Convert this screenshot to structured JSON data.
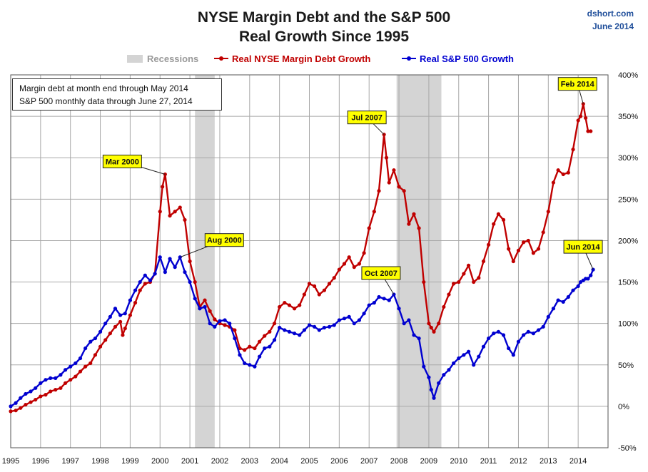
{
  "header": {
    "title_line1": "NYSE Margin Debt and the S&P 500",
    "title_line2": "Real Growth Since 1995",
    "source_line1": "dshort.com",
    "source_line2": "June 2014"
  },
  "note": {
    "line1": "Margin debt at month end through May 2014",
    "line2": "S&P 500 monthly data through June 27, 2014"
  },
  "chart_data": {
    "type": "line",
    "title": "NYSE Margin Debt and the S&P 500 Real Growth Since 1995",
    "xlim": [
      1995.0,
      2015.0
    ],
    "ylim": [
      -50,
      400
    ],
    "y_ticks": [
      -50,
      0,
      50,
      100,
      150,
      200,
      250,
      300,
      350,
      400
    ],
    "y_tick_labels": [
      "-50%",
      "0%",
      "50%",
      "100%",
      "150%",
      "200%",
      "250%",
      "300%",
      "350%",
      "400%"
    ],
    "x_ticks": [
      1995,
      1996,
      1997,
      1998,
      1999,
      2000,
      2001,
      2002,
      2003,
      2004,
      2005,
      2006,
      2007,
      2008,
      2009,
      2010,
      2011,
      2012,
      2013,
      2014
    ],
    "x_tick_labels": [
      "1995",
      "1996",
      "1997",
      "1998",
      "1999",
      "2000",
      "2001",
      "2002",
      "2003",
      "2004",
      "2005",
      "2006",
      "2007",
      "2008",
      "2009",
      "2010",
      "2011",
      "2012",
      "2013",
      "2014"
    ],
    "grid": true,
    "legend_position": "top-center",
    "y_axis_side": "right",
    "recessions": {
      "name": "Recessions",
      "color": "#d4d4d4",
      "periods": [
        [
          2001.17,
          2001.83
        ],
        [
          2007.92,
          2009.42
        ]
      ]
    },
    "series": [
      {
        "name": "Real NYSE Margin Debt Growth",
        "color": "#c00000",
        "points": [
          [
            1995.0,
            -6
          ],
          [
            1995.17,
            -5
          ],
          [
            1995.33,
            -2
          ],
          [
            1995.5,
            2
          ],
          [
            1995.67,
            5
          ],
          [
            1995.83,
            8
          ],
          [
            1996.0,
            12
          ],
          [
            1996.17,
            14
          ],
          [
            1996.33,
            18
          ],
          [
            1996.5,
            20
          ],
          [
            1996.67,
            22
          ],
          [
            1996.83,
            28
          ],
          [
            1997.0,
            32
          ],
          [
            1997.17,
            36
          ],
          [
            1997.33,
            42
          ],
          [
            1997.5,
            48
          ],
          [
            1997.67,
            52
          ],
          [
            1997.83,
            62
          ],
          [
            1998.0,
            72
          ],
          [
            1998.17,
            80
          ],
          [
            1998.33,
            88
          ],
          [
            1998.5,
            96
          ],
          [
            1998.67,
            102
          ],
          [
            1998.75,
            86
          ],
          [
            1998.83,
            94
          ],
          [
            1999.0,
            110
          ],
          [
            1999.17,
            125
          ],
          [
            1999.33,
            140
          ],
          [
            1999.5,
            148
          ],
          [
            1999.67,
            150
          ],
          [
            1999.83,
            160
          ],
          [
            2000.0,
            235
          ],
          [
            2000.08,
            265
          ],
          [
            2000.17,
            280
          ],
          [
            2000.33,
            230
          ],
          [
            2000.5,
            235
          ],
          [
            2000.67,
            240
          ],
          [
            2000.83,
            225
          ],
          [
            2001.0,
            175
          ],
          [
            2001.17,
            150
          ],
          [
            2001.33,
            120
          ],
          [
            2001.5,
            128
          ],
          [
            2001.67,
            115
          ],
          [
            2001.83,
            105
          ],
          [
            2002.0,
            100
          ],
          [
            2002.17,
            98
          ],
          [
            2002.33,
            96
          ],
          [
            2002.5,
            92
          ],
          [
            2002.67,
            70
          ],
          [
            2002.83,
            68
          ],
          [
            2003.0,
            72
          ],
          [
            2003.17,
            70
          ],
          [
            2003.33,
            78
          ],
          [
            2003.5,
            85
          ],
          [
            2003.67,
            90
          ],
          [
            2003.83,
            100
          ],
          [
            2004.0,
            120
          ],
          [
            2004.17,
            125
          ],
          [
            2004.33,
            122
          ],
          [
            2004.5,
            118
          ],
          [
            2004.67,
            122
          ],
          [
            2004.83,
            135
          ],
          [
            2005.0,
            148
          ],
          [
            2005.17,
            145
          ],
          [
            2005.33,
            135
          ],
          [
            2005.5,
            140
          ],
          [
            2005.67,
            148
          ],
          [
            2005.83,
            155
          ],
          [
            2006.0,
            165
          ],
          [
            2006.17,
            172
          ],
          [
            2006.33,
            180
          ],
          [
            2006.5,
            168
          ],
          [
            2006.67,
            172
          ],
          [
            2006.83,
            185
          ],
          [
            2007.0,
            215
          ],
          [
            2007.17,
            235
          ],
          [
            2007.33,
            260
          ],
          [
            2007.5,
            328
          ],
          [
            2007.58,
            300
          ],
          [
            2007.67,
            270
          ],
          [
            2007.83,
            285
          ],
          [
            2008.0,
            265
          ],
          [
            2008.17,
            260
          ],
          [
            2008.33,
            220
          ],
          [
            2008.5,
            232
          ],
          [
            2008.67,
            215
          ],
          [
            2008.83,
            150
          ],
          [
            2009.0,
            100
          ],
          [
            2009.08,
            95
          ],
          [
            2009.17,
            90
          ],
          [
            2009.33,
            100
          ],
          [
            2009.5,
            120
          ],
          [
            2009.67,
            135
          ],
          [
            2009.83,
            148
          ],
          [
            2010.0,
            150
          ],
          [
            2010.17,
            160
          ],
          [
            2010.33,
            170
          ],
          [
            2010.5,
            150
          ],
          [
            2010.67,
            155
          ],
          [
            2010.83,
            175
          ],
          [
            2011.0,
            195
          ],
          [
            2011.17,
            220
          ],
          [
            2011.33,
            232
          ],
          [
            2011.5,
            225
          ],
          [
            2011.67,
            190
          ],
          [
            2011.83,
            175
          ],
          [
            2012.0,
            188
          ],
          [
            2012.17,
            198
          ],
          [
            2012.33,
            200
          ],
          [
            2012.5,
            185
          ],
          [
            2012.67,
            190
          ],
          [
            2012.83,
            210
          ],
          [
            2013.0,
            235
          ],
          [
            2013.17,
            270
          ],
          [
            2013.33,
            285
          ],
          [
            2013.5,
            280
          ],
          [
            2013.67,
            282
          ],
          [
            2013.83,
            310
          ],
          [
            2014.0,
            345
          ],
          [
            2014.08,
            350
          ],
          [
            2014.17,
            365
          ],
          [
            2014.25,
            348
          ],
          [
            2014.33,
            332
          ],
          [
            2014.42,
            332
          ]
        ]
      },
      {
        "name": "Real S&P 500 Growth",
        "color": "#0000d0",
        "points": [
          [
            1995.0,
            0
          ],
          [
            1995.17,
            4
          ],
          [
            1995.33,
            10
          ],
          [
            1995.5,
            15
          ],
          [
            1995.67,
            18
          ],
          [
            1995.83,
            22
          ],
          [
            1996.0,
            28
          ],
          [
            1996.17,
            32
          ],
          [
            1996.33,
            34
          ],
          [
            1996.5,
            34
          ],
          [
            1996.67,
            38
          ],
          [
            1996.83,
            44
          ],
          [
            1997.0,
            48
          ],
          [
            1997.17,
            52
          ],
          [
            1997.33,
            58
          ],
          [
            1997.5,
            70
          ],
          [
            1997.67,
            78
          ],
          [
            1997.83,
            82
          ],
          [
            1998.0,
            90
          ],
          [
            1998.17,
            100
          ],
          [
            1998.33,
            108
          ],
          [
            1998.5,
            118
          ],
          [
            1998.67,
            110
          ],
          [
            1998.83,
            112
          ],
          [
            1999.0,
            128
          ],
          [
            1999.17,
            140
          ],
          [
            1999.33,
            150
          ],
          [
            1999.5,
            158
          ],
          [
            1999.67,
            152
          ],
          [
            1999.83,
            160
          ],
          [
            2000.0,
            180
          ],
          [
            2000.17,
            162
          ],
          [
            2000.33,
            178
          ],
          [
            2000.5,
            168
          ],
          [
            2000.67,
            180
          ],
          [
            2000.83,
            162
          ],
          [
            2001.0,
            150
          ],
          [
            2001.17,
            130
          ],
          [
            2001.33,
            118
          ],
          [
            2001.5,
            120
          ],
          [
            2001.67,
            100
          ],
          [
            2001.83,
            96
          ],
          [
            2002.0,
            103
          ],
          [
            2002.17,
            104
          ],
          [
            2002.33,
            100
          ],
          [
            2002.5,
            82
          ],
          [
            2002.67,
            62
          ],
          [
            2002.83,
            52
          ],
          [
            2003.0,
            50
          ],
          [
            2003.17,
            48
          ],
          [
            2003.33,
            60
          ],
          [
            2003.5,
            70
          ],
          [
            2003.67,
            72
          ],
          [
            2003.83,
            80
          ],
          [
            2004.0,
            95
          ],
          [
            2004.17,
            92
          ],
          [
            2004.33,
            90
          ],
          [
            2004.5,
            88
          ],
          [
            2004.67,
            86
          ],
          [
            2004.83,
            92
          ],
          [
            2005.0,
            98
          ],
          [
            2005.17,
            96
          ],
          [
            2005.33,
            92
          ],
          [
            2005.5,
            95
          ],
          [
            2005.67,
            96
          ],
          [
            2005.83,
            98
          ],
          [
            2006.0,
            104
          ],
          [
            2006.17,
            106
          ],
          [
            2006.33,
            108
          ],
          [
            2006.5,
            100
          ],
          [
            2006.67,
            104
          ],
          [
            2006.83,
            112
          ],
          [
            2007.0,
            122
          ],
          [
            2007.17,
            125
          ],
          [
            2007.33,
            132
          ],
          [
            2007.5,
            130
          ],
          [
            2007.67,
            128
          ],
          [
            2007.83,
            135
          ],
          [
            2008.0,
            118
          ],
          [
            2008.17,
            100
          ],
          [
            2008.33,
            104
          ],
          [
            2008.5,
            86
          ],
          [
            2008.67,
            82
          ],
          [
            2008.83,
            48
          ],
          [
            2009.0,
            35
          ],
          [
            2009.08,
            20
          ],
          [
            2009.17,
            10
          ],
          [
            2009.33,
            28
          ],
          [
            2009.5,
            38
          ],
          [
            2009.67,
            44
          ],
          [
            2009.83,
            52
          ],
          [
            2010.0,
            58
          ],
          [
            2010.17,
            62
          ],
          [
            2010.33,
            66
          ],
          [
            2010.5,
            50
          ],
          [
            2010.67,
            60
          ],
          [
            2010.83,
            72
          ],
          [
            2011.0,
            82
          ],
          [
            2011.17,
            88
          ],
          [
            2011.33,
            90
          ],
          [
            2011.5,
            86
          ],
          [
            2011.67,
            70
          ],
          [
            2011.83,
            62
          ],
          [
            2012.0,
            78
          ],
          [
            2012.17,
            86
          ],
          [
            2012.33,
            90
          ],
          [
            2012.5,
            88
          ],
          [
            2012.67,
            92
          ],
          [
            2012.83,
            96
          ],
          [
            2013.0,
            108
          ],
          [
            2013.17,
            118
          ],
          [
            2013.33,
            128
          ],
          [
            2013.5,
            126
          ],
          [
            2013.67,
            132
          ],
          [
            2013.83,
            140
          ],
          [
            2014.0,
            145
          ],
          [
            2014.08,
            150
          ],
          [
            2014.17,
            152
          ],
          [
            2014.25,
            154
          ],
          [
            2014.33,
            154
          ],
          [
            2014.42,
            158
          ],
          [
            2014.5,
            165
          ]
        ]
      }
    ],
    "annotations": [
      {
        "label": "Mar 2000",
        "series": 0,
        "x": 2000.17,
        "y": 280
      },
      {
        "label": "Aug 2000",
        "series": 1,
        "x": 2000.67,
        "y": 180
      },
      {
        "label": "Jul 2007",
        "series": 0,
        "x": 2007.5,
        "y": 328
      },
      {
        "label": "Oct 2007",
        "series": 1,
        "x": 2007.83,
        "y": 135
      },
      {
        "label": "Feb 2014",
        "series": 0,
        "x": 2014.17,
        "y": 365
      },
      {
        "label": "Jun 2014",
        "series": 1,
        "x": 2014.5,
        "y": 165
      }
    ]
  }
}
